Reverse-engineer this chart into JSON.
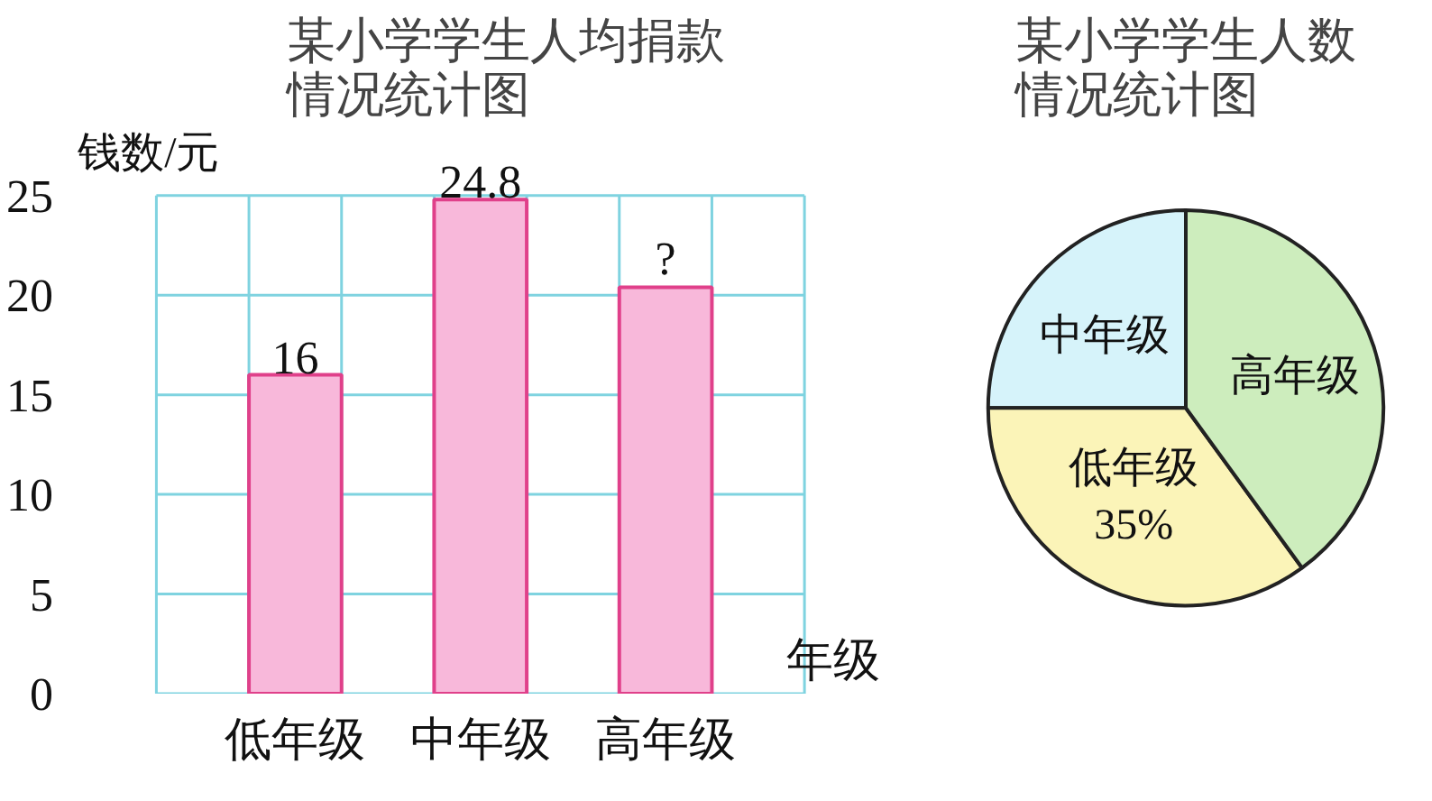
{
  "chart_data": [
    {
      "type": "bar",
      "title": "某小学学生人均捐款情况统计图",
      "xlabel": "年级",
      "ylabel": "钱数/元",
      "categories": [
        "低年级",
        "中年级",
        "高年级"
      ],
      "values": [
        16,
        24.8,
        20.4
      ],
      "value_labels": [
        "16",
        "24.8",
        "?"
      ],
      "color": "#f8b8da",
      "ylim": [
        0,
        25
      ],
      "yticks": [
        0,
        5,
        10,
        15,
        20,
        25
      ],
      "grid": true
    },
    {
      "type": "pie",
      "title": "某小学学生人数情况统计图",
      "categories": [
        "中年级",
        "低年级",
        "高年级"
      ],
      "values": [
        25,
        35,
        40
      ],
      "value_labels": [
        null,
        "35%",
        null
      ],
      "colors": [
        "#d6f3fa",
        "#fbf4b8",
        "#cdedbd"
      ]
    }
  ]
}
